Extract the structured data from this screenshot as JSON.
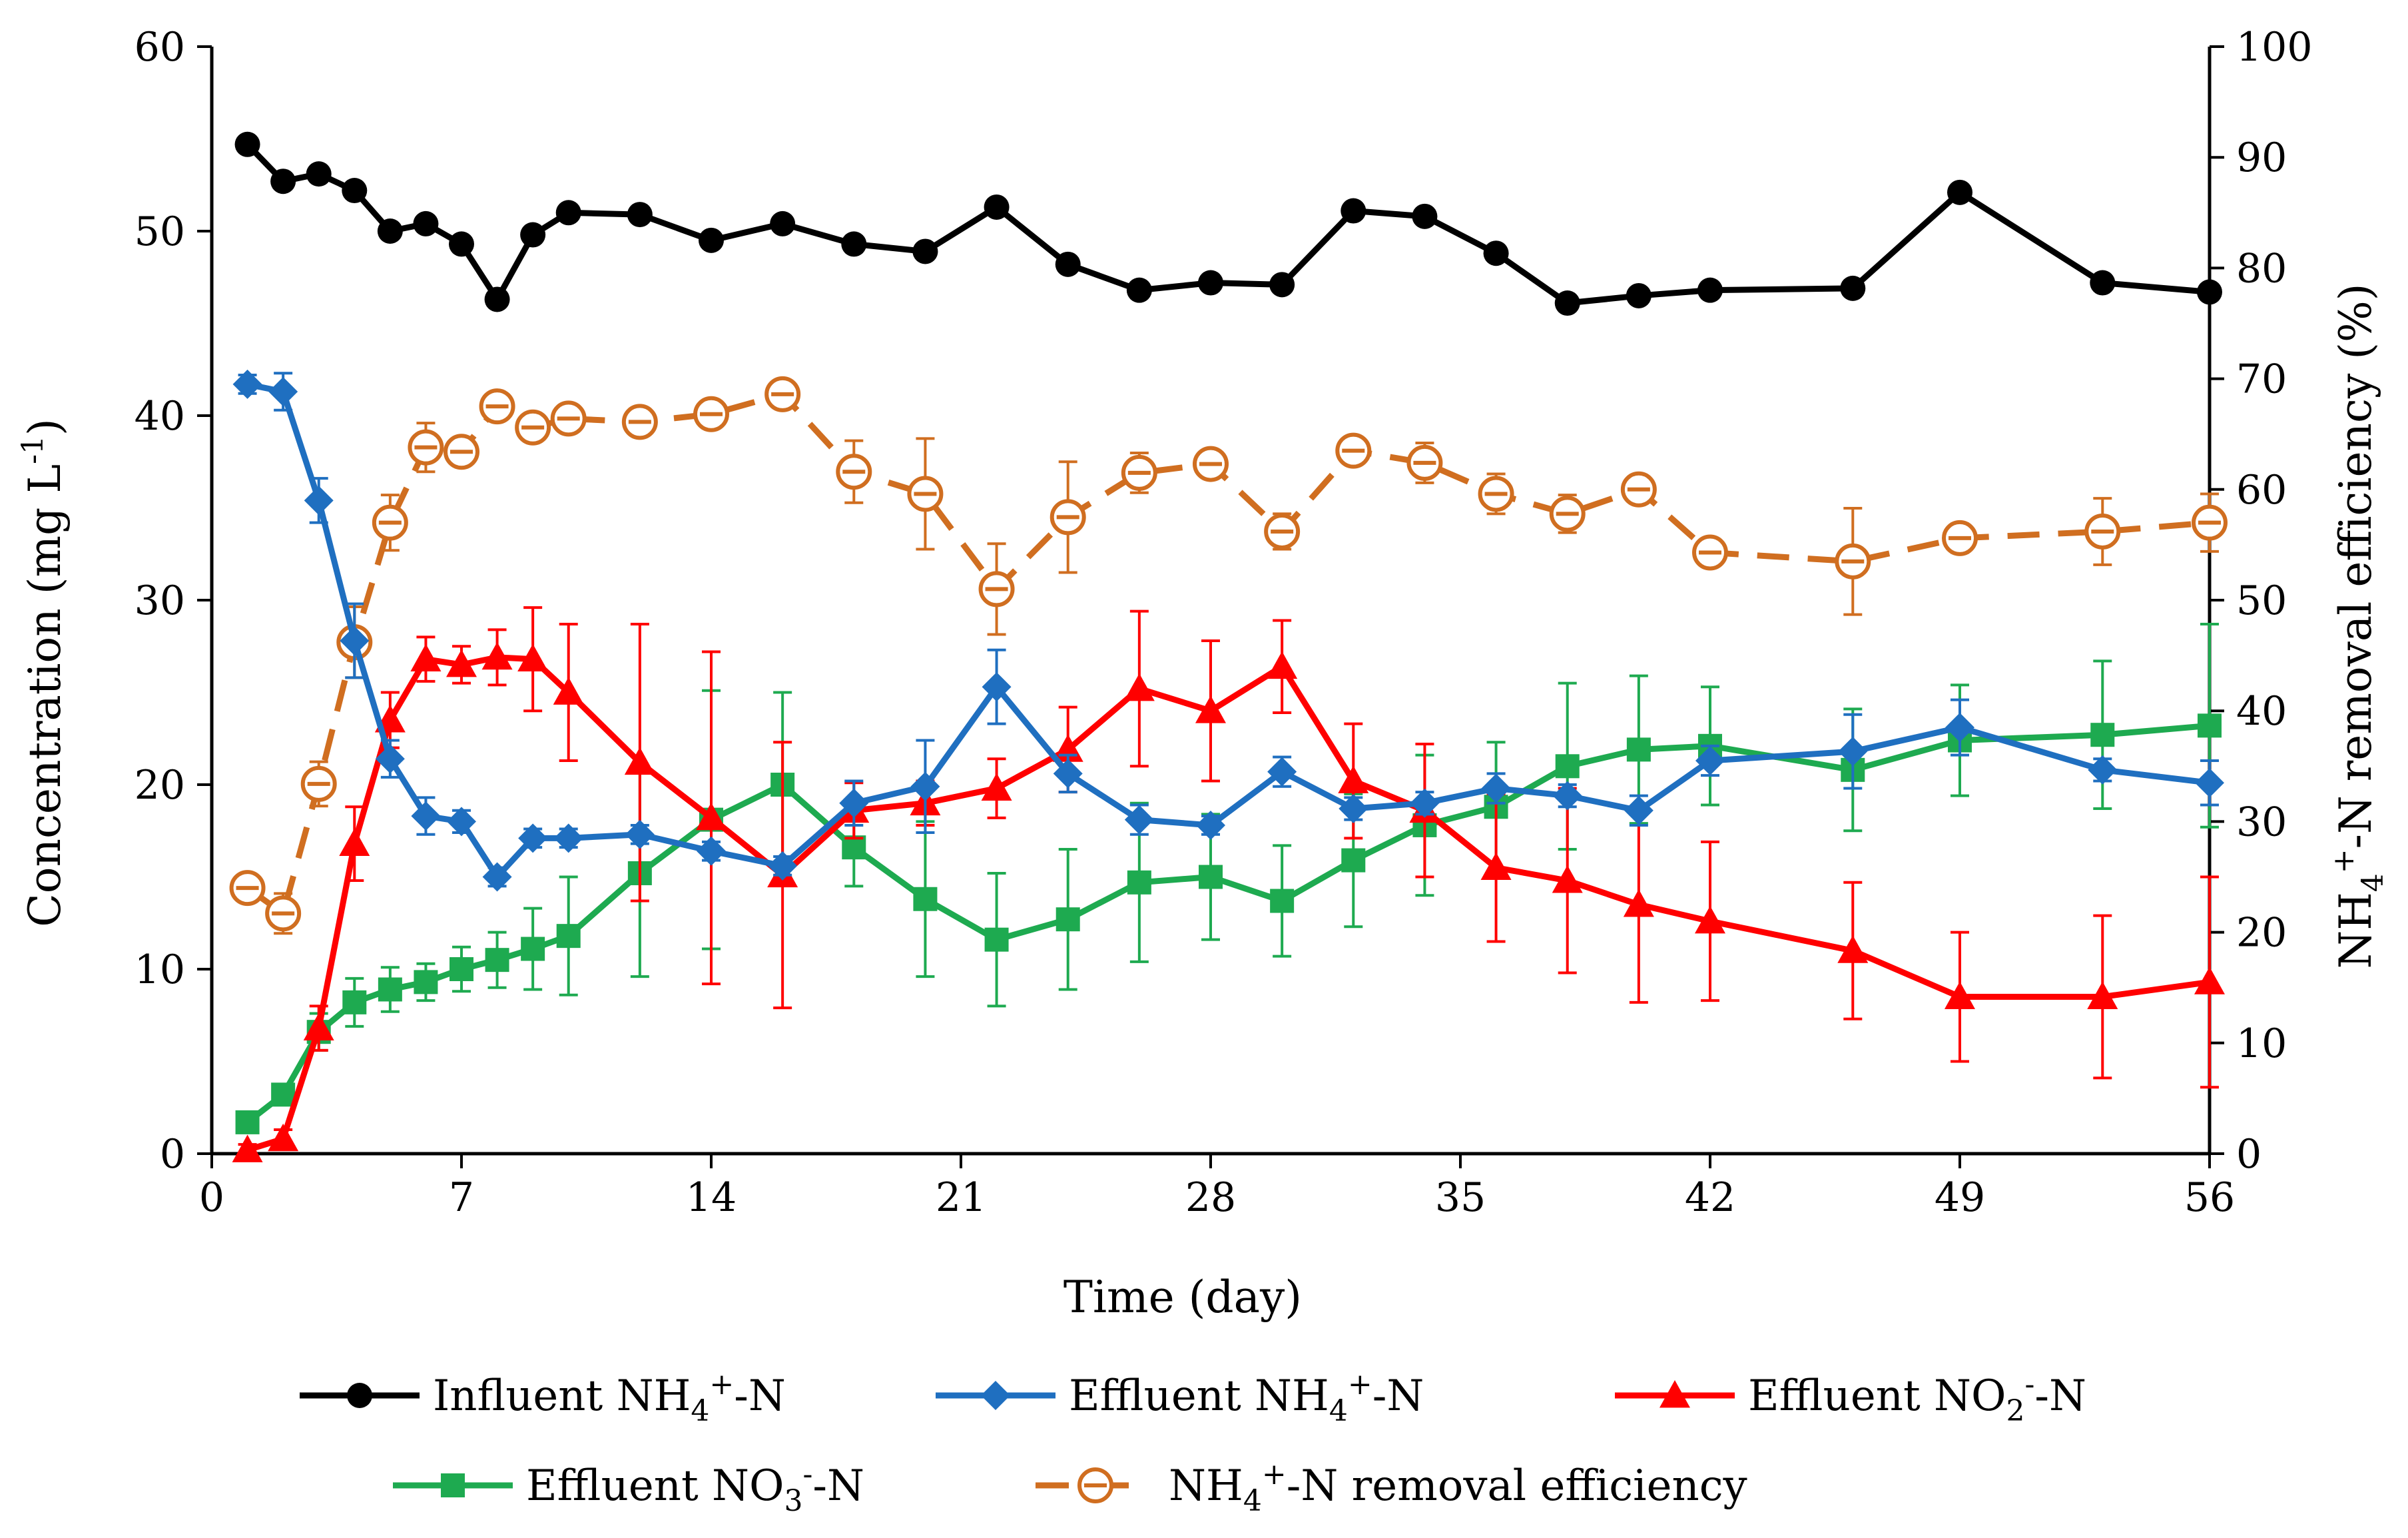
{
  "chart_data": {
    "type": "line",
    "xlabel": "Time (day)",
    "ylabel_left": {
      "main": "Concentration (mg L",
      "sup": "-1",
      "end": ")"
    },
    "ylabel_right": {
      "a": "NH",
      "sub": "4",
      "sup": "+",
      "b": "-N removal efficiency  (%)"
    },
    "xlim": [
      0,
      56
    ],
    "ylim_left": [
      0,
      60
    ],
    "ylim_right": [
      0,
      100
    ],
    "x_ticks": [
      0,
      7,
      14,
      21,
      28,
      35,
      42,
      49,
      56
    ],
    "y_ticks_left": [
      0,
      10,
      20,
      30,
      40,
      50,
      60
    ],
    "y_ticks_right": [
      0,
      10,
      20,
      30,
      40,
      50,
      60,
      70,
      80,
      90,
      100
    ],
    "series": [
      {
        "name": "Influent NH4+-N",
        "legend": {
          "a": "Influent NH",
          "sub": "4",
          "sup": "+",
          "b": "-N"
        },
        "color": "#000000",
        "marker": "circle",
        "dashed": false,
        "axis": "left",
        "x": [
          1,
          2,
          3,
          4,
          5,
          6,
          7,
          8,
          9,
          10,
          12,
          14,
          16,
          18,
          20,
          22,
          24,
          26,
          28,
          30,
          32,
          34,
          36,
          38,
          40,
          42,
          46,
          49,
          53,
          56
        ],
        "values": [
          54.7,
          52.7,
          53.1,
          52.2,
          50.0,
          50.4,
          49.3,
          46.3,
          49.8,
          51.0,
          50.9,
          49.5,
          50.4,
          49.3,
          48.9,
          51.3,
          48.2,
          46.8,
          47.2,
          47.1,
          51.1,
          50.8,
          48.8,
          46.1,
          46.5,
          46.8,
          46.9,
          52.1,
          47.2,
          46.7
        ],
        "err": []
      },
      {
        "name": "Effluent NH4+-N",
        "legend": {
          "a": "Effluent  NH",
          "sub": "4",
          "sup": "+",
          "b": "-N"
        },
        "color": "#1f6fc0",
        "marker": "diamond",
        "dashed": false,
        "axis": "left",
        "x": [
          1,
          2,
          3,
          4,
          5,
          6,
          7,
          8,
          9,
          10,
          12,
          14,
          16,
          18,
          20,
          22,
          24,
          26,
          28,
          30,
          32,
          34,
          36,
          38,
          40,
          42,
          46,
          49,
          53,
          56
        ],
        "values": [
          41.7,
          41.3,
          35.4,
          27.8,
          21.4,
          18.3,
          18.0,
          15.0,
          17.1,
          17.1,
          17.3,
          16.4,
          15.6,
          19.0,
          19.9,
          25.3,
          20.6,
          18.1,
          17.8,
          20.7,
          18.7,
          19.0,
          19.8,
          19.4,
          18.6,
          21.3,
          21.8,
          23.1,
          20.8,
          20.1
        ],
        "err": [
          0.5,
          1.0,
          1.2,
          2.0,
          1.0,
          1.0,
          0.6,
          0.5,
          0.5,
          0.5,
          0.5,
          0.5,
          0.5,
          1.2,
          2.5,
          2.0,
          1.0,
          0.8,
          0.5,
          0.8,
          0.6,
          0.6,
          0.8,
          0.6,
          0.8,
          0.8,
          2.0,
          1.5,
          0.6,
          1.2
        ]
      },
      {
        "name": "Effluent NO2--N",
        "legend": {
          "a": "Effluent  NO",
          "sub": "2",
          "sup": "-",
          "b": "-N"
        },
        "color": "#ff0000",
        "marker": "triangle",
        "dashed": false,
        "axis": "left",
        "x": [
          1,
          2,
          3,
          4,
          5,
          6,
          7,
          8,
          9,
          10,
          12,
          14,
          16,
          18,
          20,
          22,
          24,
          26,
          28,
          30,
          32,
          34,
          36,
          38,
          40,
          42,
          46,
          49,
          53,
          56
        ],
        "values": [
          0.2,
          0.8,
          6.8,
          16.8,
          23.5,
          26.8,
          26.5,
          26.9,
          26.8,
          25.0,
          21.2,
          18.2,
          15.1,
          18.6,
          19.0,
          19.8,
          21.9,
          25.2,
          24.0,
          26.4,
          20.2,
          18.6,
          15.5,
          14.8,
          13.5,
          12.6,
          11.0,
          8.5,
          8.5,
          9.3
        ],
        "err": [
          0.3,
          0.5,
          1.2,
          2.0,
          1.5,
          1.2,
          1.0,
          1.5,
          2.8,
          3.7,
          7.5,
          9.0,
          7.2,
          1.5,
          1.2,
          1.6,
          2.3,
          4.2,
          3.8,
          2.5,
          3.1,
          3.6,
          4.0,
          5.0,
          5.3,
          4.3,
          3.7,
          3.5,
          4.4,
          5.7
        ]
      },
      {
        "name": "Effluent NO3--N",
        "legend": {
          "a": "Effluent  NO",
          "sub": "3",
          "sup": "-",
          "b": "-N"
        },
        "color": "#1eaa50",
        "marker": "square",
        "dashed": false,
        "axis": "left",
        "x": [
          1,
          2,
          3,
          4,
          5,
          6,
          7,
          8,
          9,
          10,
          12,
          14,
          16,
          18,
          20,
          22,
          24,
          26,
          28,
          30,
          32,
          34,
          36,
          38,
          40,
          42,
          46,
          49,
          53,
          56
        ],
        "values": [
          1.7,
          3.2,
          6.6,
          8.2,
          8.9,
          9.3,
          10.0,
          10.5,
          11.1,
          11.8,
          15.2,
          18.1,
          20.0,
          16.6,
          13.8,
          11.6,
          12.7,
          14.7,
          15.0,
          13.7,
          15.9,
          17.8,
          18.8,
          21.0,
          21.9,
          22.1,
          20.8,
          22.4,
          22.7,
          23.2
        ],
        "err": [
          0.4,
          0.5,
          1.0,
          1.3,
          1.2,
          1.0,
          1.2,
          1.5,
          2.2,
          3.2,
          5.6,
          7.0,
          5.0,
          2.1,
          4.2,
          3.6,
          3.8,
          4.3,
          3.4,
          3.0,
          3.6,
          3.8,
          3.5,
          4.5,
          4.0,
          3.2,
          3.3,
          3.0,
          4.0,
          5.5
        ]
      },
      {
        "name": "NH4+-N removal efficiency",
        "legend": {
          "a": "NH",
          "sub": "4",
          "sup": "+",
          "b": "-N removal efficiency"
        },
        "color": "#d06e20",
        "marker": "ring",
        "dashed": true,
        "axis": "right",
        "x": [
          1,
          2,
          3,
          4,
          5,
          6,
          7,
          8,
          9,
          10,
          12,
          14,
          16,
          18,
          20,
          22,
          24,
          26,
          28,
          30,
          32,
          34,
          36,
          38,
          40,
          42,
          46,
          49,
          53,
          56
        ],
        "values": [
          24.0,
          21.7,
          33.4,
          46.2,
          57.0,
          63.8,
          63.4,
          67.5,
          65.6,
          66.4,
          66.1,
          66.8,
          68.6,
          61.6,
          59.6,
          51.0,
          57.5,
          61.5,
          62.3,
          56.2,
          63.5,
          62.4,
          59.6,
          57.8,
          60.0,
          54.3,
          53.5,
          55.6,
          56.2,
          57.0
        ],
        "err": [
          0.8,
          1.8,
          2.0,
          3.2,
          2.5,
          2.2,
          1.0,
          0.8,
          0.8,
          0.8,
          0.8,
          1.0,
          0.9,
          2.8,
          5.0,
          4.1,
          5.0,
          1.8,
          1.0,
          1.6,
          1.2,
          1.8,
          1.8,
          1.7,
          1.0,
          1.2,
          4.8,
          1.3,
          3.0,
          2.6
        ]
      }
    ]
  }
}
